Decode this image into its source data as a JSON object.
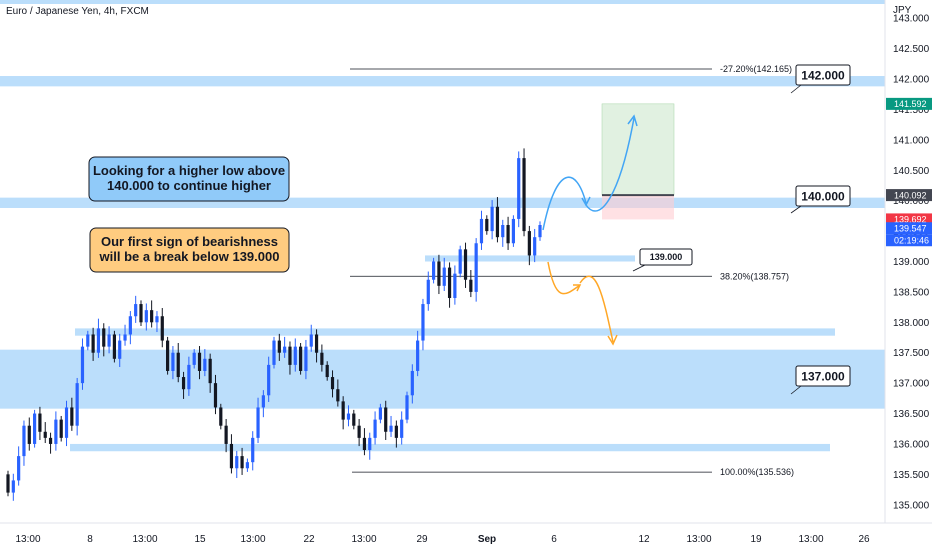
{
  "chart_data": {
    "type": "candlestick",
    "symbol": "Euro / Japanese Yen, 4h, FXCM",
    "currency": "JPY",
    "ylim": [
      134.7,
      143.3
    ],
    "y_ticks": [
      "143.000",
      "142.500",
      "142.000",
      "141.500",
      "141.000",
      "140.500",
      "140.000",
      "139.500",
      "139.000",
      "138.500",
      "138.000",
      "137.500",
      "137.000",
      "136.500",
      "136.000",
      "135.500",
      "135.000"
    ],
    "x_ticks": [
      "13:00",
      "8",
      "13:00",
      "15",
      "13:00",
      "22",
      "13:00",
      "29",
      "Sep",
      "6",
      "12",
      "13:00",
      "19",
      "13:00",
      "26"
    ],
    "x_tick_bold": "Sep",
    "candles": [
      [
        135.5,
        135.2
      ],
      [
        135.2,
        135.4
      ],
      [
        135.4,
        135.8
      ],
      [
        135.8,
        136.3
      ],
      [
        136.3,
        136.0
      ],
      [
        136.0,
        136.5
      ],
      [
        136.5,
        136.2
      ],
      [
        136.2,
        136.1
      ],
      [
        136.1,
        136.0
      ],
      [
        136.0,
        136.4
      ],
      [
        136.4,
        136.1
      ],
      [
        136.1,
        136.6
      ],
      [
        136.6,
        136.3
      ],
      [
        136.3,
        137.0
      ],
      [
        137.0,
        137.6
      ],
      [
        137.6,
        137.8
      ],
      [
        137.8,
        137.5
      ],
      [
        137.5,
        137.9
      ],
      [
        137.9,
        137.6
      ],
      [
        137.6,
        137.8
      ],
      [
        137.8,
        137.4
      ],
      [
        137.4,
        137.7
      ],
      [
        137.7,
        137.8
      ],
      [
        137.8,
        138.1
      ],
      [
        138.1,
        138.3
      ],
      [
        138.3,
        138.0
      ],
      [
        138.0,
        138.2
      ],
      [
        138.2,
        138.0
      ],
      [
        138.0,
        138.1
      ],
      [
        138.1,
        137.7
      ],
      [
        137.7,
        137.2
      ],
      [
        137.2,
        137.5
      ],
      [
        137.5,
        137.1
      ],
      [
        137.1,
        136.9
      ],
      [
        136.9,
        137.3
      ],
      [
        137.3,
        137.5
      ],
      [
        137.5,
        137.2
      ],
      [
        137.2,
        137.4
      ],
      [
        137.4,
        137.0
      ],
      [
        137.0,
        136.6
      ],
      [
        136.6,
        136.3
      ],
      [
        136.3,
        136.0
      ],
      [
        136.0,
        135.6
      ],
      [
        135.6,
        135.8
      ],
      [
        135.8,
        135.6
      ],
      [
        135.6,
        135.7
      ],
      [
        135.7,
        136.1
      ],
      [
        136.1,
        136.6
      ],
      [
        136.6,
        136.8
      ],
      [
        136.8,
        137.3
      ],
      [
        137.3,
        137.7
      ],
      [
        137.7,
        137.5
      ],
      [
        137.5,
        137.6
      ],
      [
        137.6,
        137.3
      ],
      [
        137.3,
        137.6
      ],
      [
        137.6,
        137.2
      ],
      [
        137.2,
        137.6
      ],
      [
        137.6,
        137.8
      ],
      [
        137.8,
        137.5
      ],
      [
        137.5,
        137.3
      ],
      [
        137.3,
        137.1
      ],
      [
        137.1,
        136.9
      ],
      [
        136.9,
        136.7
      ],
      [
        136.7,
        136.4
      ],
      [
        136.4,
        136.5
      ],
      [
        136.5,
        136.3
      ],
      [
        136.3,
        136.1
      ],
      [
        136.1,
        135.9
      ],
      [
        135.9,
        136.1
      ],
      [
        136.1,
        136.4
      ],
      [
        136.4,
        136.6
      ],
      [
        136.6,
        136.2
      ],
      [
        136.2,
        136.3
      ],
      [
        136.3,
        136.1
      ],
      [
        136.1,
        136.4
      ],
      [
        136.4,
        136.8
      ],
      [
        136.8,
        137.2
      ],
      [
        137.2,
        137.7
      ],
      [
        137.7,
        138.3
      ],
      [
        138.3,
        138.7
      ],
      [
        138.7,
        139.0
      ],
      [
        139.0,
        138.6
      ],
      [
        138.6,
        138.9
      ],
      [
        138.9,
        138.4
      ],
      [
        138.4,
        138.8
      ],
      [
        138.8,
        139.2
      ],
      [
        139.2,
        138.7
      ],
      [
        138.7,
        138.5
      ],
      [
        138.5,
        139.3
      ],
      [
        139.3,
        139.7
      ],
      [
        139.7,
        139.5
      ],
      [
        139.5,
        139.9
      ],
      [
        139.9,
        139.4
      ],
      [
        139.4,
        139.6
      ],
      [
        139.6,
        139.3
      ],
      [
        139.3,
        139.7
      ],
      [
        139.7,
        140.7
      ],
      [
        140.7,
        139.5
      ],
      [
        139.5,
        139.1
      ],
      [
        139.1,
        139.4
      ],
      [
        139.4,
        139.6
      ]
    ],
    "zones": [
      {
        "from": 141.88,
        "to": 142.05
      },
      {
        "from": 139.88,
        "to": 140.05
      },
      {
        "from": 139.0,
        "to": 139.1
      },
      {
        "from": 137.78,
        "to": 137.9
      },
      {
        "from": 136.58,
        "to": 137.55
      },
      {
        "from": 135.88,
        "to": 136.0
      }
    ],
    "fib_levels": [
      {
        "label": "-27.20%(142.165)",
        "value": 142.165
      },
      {
        "label": "38.20%(138.757)",
        "value": 138.757
      },
      {
        "label": "100.00%(135.536)",
        "value": 135.536
      }
    ],
    "level_callouts": [
      "142.000",
      "140.000",
      "139.000",
      "137.000"
    ],
    "notes": [
      {
        "lines": [
          "Looking for a higher low above",
          "140.000 to continue higher"
        ],
        "fill": "#90caf9"
      },
      {
        "lines": [
          "Our first sign of bearishness",
          "will be a break below 139.000"
        ],
        "fill": "#ffcc80"
      }
    ],
    "price_tags": [
      {
        "label": "141.592",
        "color": "#089981"
      },
      {
        "label": "140.092",
        "color": "#434651"
      },
      {
        "label": "139.692",
        "color": "#f23645"
      },
      {
        "label": "139.547",
        "color": "#2962ff"
      },
      {
        "label": "02:19:46",
        "color": "#2962ff"
      }
    ],
    "position": {
      "target": 141.592,
      "entry": 140.092,
      "stop": 139.692
    },
    "colors": {
      "up": "#2962ff",
      "down": "#131722",
      "zone": "#bbdefb",
      "bull_arrow": "#42a5f5",
      "bear_arrow": "#ffa726"
    }
  }
}
